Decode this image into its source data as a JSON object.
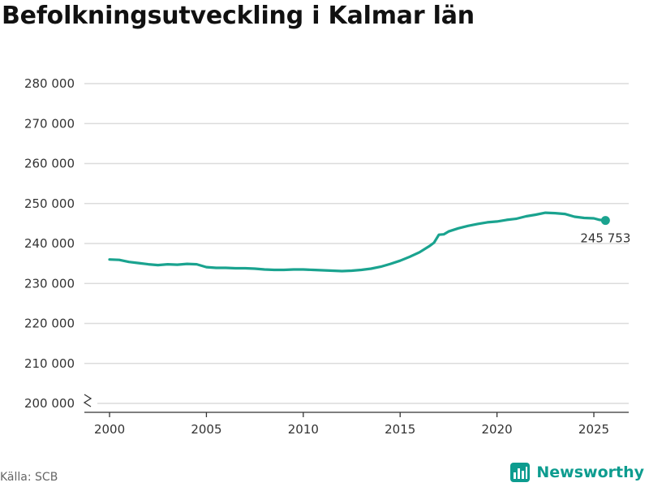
{
  "chart_data": {
    "type": "line",
    "title": "Befolkningsutveckling i Kalmar län",
    "xlabel": "",
    "ylabel": "",
    "xlim": [
      1998.7,
      2026.8
    ],
    "ylim": [
      200000,
      280000
    ],
    "y_ticks": [
      200000,
      210000,
      220000,
      230000,
      240000,
      250000,
      260000,
      270000,
      280000
    ],
    "y_tick_labels": [
      "200 000",
      "210 000",
      "220 000",
      "230 000",
      "240 000",
      "250 000",
      "260 000",
      "270 000",
      "280 000"
    ],
    "x_ticks": [
      2000,
      2005,
      2010,
      2015,
      2020,
      2025
    ],
    "x_tick_labels": [
      "2000",
      "2005",
      "2010",
      "2015",
      "2020",
      "2025"
    ],
    "y_axis_break": true,
    "grid": "horizontal",
    "line_color": "#1aa38f",
    "series": [
      {
        "x": [
          2000.0,
          2000.5,
          2001.0,
          2001.5,
          2002.0,
          2002.5,
          2003.0,
          2003.5,
          2004.0,
          2004.5,
          2005.0,
          2005.5,
          2006.0,
          2006.5,
          2007.0,
          2007.5,
          2008.0,
          2008.5,
          2009.0,
          2009.5,
          2010.0,
          2010.5,
          2011.0,
          2011.5,
          2012.0,
          2012.5,
          2013.0,
          2013.5,
          2014.0,
          2014.5,
          2015.0,
          2015.5,
          2016.0,
          2016.5,
          2016.75,
          2017.0,
          2017.25,
          2017.5,
          2018.0,
          2018.5,
          2019.0,
          2019.5,
          2020.0,
          2020.5,
          2021.0,
          2021.5,
          2022.0,
          2022.5,
          2023.0,
          2023.5,
          2024.0,
          2024.5,
          2025.0,
          2025.3,
          2025.6
        ],
        "y": [
          236000,
          235900,
          235400,
          235100,
          234800,
          234600,
          234800,
          234700,
          234900,
          234800,
          234100,
          233900,
          233900,
          233800,
          233800,
          233700,
          233500,
          233400,
          233400,
          233500,
          233500,
          233400,
          233300,
          233200,
          233100,
          233200,
          233400,
          233700,
          234200,
          234900,
          235700,
          236700,
          237800,
          239300,
          240200,
          242200,
          242300,
          243000,
          243800,
          244400,
          244900,
          245300,
          245500,
          245900,
          246200,
          246800,
          247200,
          247700,
          247600,
          247400,
          246700,
          246400,
          246300,
          245900,
          245753
        ]
      }
    ],
    "annotations": [
      {
        "x": 2025.6,
        "y": 245753,
        "text": "245 753"
      }
    ]
  },
  "source": "Källa: SCB",
  "brand": {
    "name": "Newsworthy",
    "color": "#0d9c8f"
  }
}
